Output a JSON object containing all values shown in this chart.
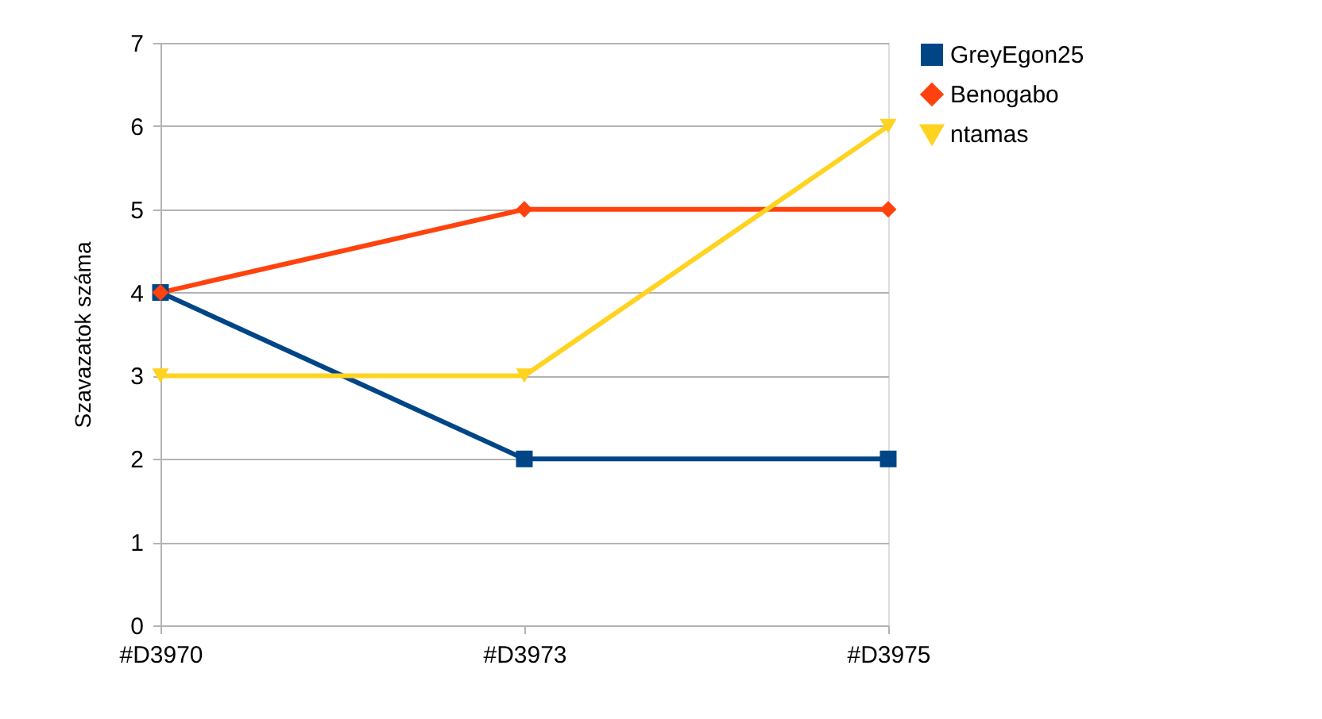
{
  "chart_data": {
    "type": "line",
    "ylabel": "Szavazatok száma",
    "categories": [
      "#D3970",
      "#D3973",
      "#D3975"
    ],
    "series": [
      {
        "name": "GreyEgon25",
        "color": "#004586",
        "marker": "square",
        "values": [
          4,
          2,
          2
        ]
      },
      {
        "name": "Benogabo",
        "color": "#ff420e",
        "marker": "diamond",
        "values": [
          4,
          5,
          5
        ]
      },
      {
        "name": "ntamas",
        "color": "#ffd320",
        "marker": "triangle",
        "values": [
          3,
          3,
          6
        ]
      }
    ],
    "ylim": [
      0,
      7
    ],
    "yticks": [
      0,
      1,
      2,
      3,
      4,
      5,
      6,
      7
    ],
    "grid": "y",
    "legend": "right",
    "line_style": "solid"
  }
}
